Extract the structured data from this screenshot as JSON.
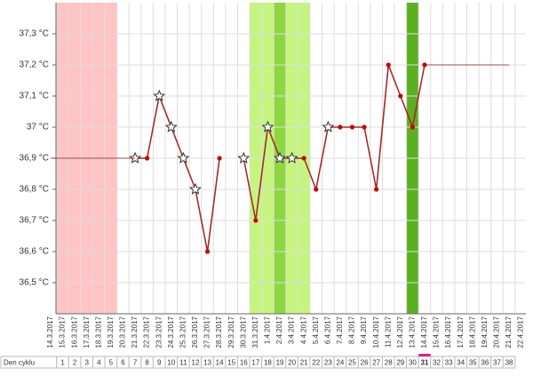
{
  "chart_data": {
    "type": "line",
    "categories": [
      "14.3.2017",
      "15.3.2017",
      "16.3.2017",
      "17.3.2017",
      "18.3.2017",
      "19.3.2017",
      "20.3.2017",
      "21.3.2017",
      "22.3.2017",
      "23.3.2017",
      "24.3.2017",
      "25.3.2017",
      "26.3.2017",
      "27.3.2017",
      "28.3.2017",
      "29.3.2017",
      "30.3.2017",
      "31.3.2017",
      "1.4.2017",
      "2.4.2017",
      "3.4.2017",
      "4.4.2017",
      "5.4.2017",
      "6.4.2017",
      "7.4.2017",
      "8.4.2017",
      "9.4.2017",
      "10.4.2017",
      "11.4.2017",
      "12.4.2017",
      "13.4.2017",
      "14.4.2017",
      "15.4.2017",
      "16.4.2017",
      "17.4.2017",
      "18.4.2017",
      "19.4.2017",
      "20.4.2017",
      "21.4.2017",
      "22.4.2017"
    ],
    "series": [
      {
        "color": "#a52a2a",
        "marker_color": "#cc0000",
        "values": [
          null,
          null,
          null,
          null,
          null,
          null,
          null,
          36.9,
          36.9,
          37.1,
          37.0,
          36.9,
          36.8,
          36.6,
          36.9,
          null,
          36.9,
          36.7,
          37.0,
          36.9,
          36.9,
          36.9,
          36.8,
          37.0,
          37.0,
          37.0,
          37.0,
          36.8,
          37.2,
          37.1,
          37.0,
          37.2,
          null,
          null,
          null,
          null,
          null,
          null,
          null,
          null
        ],
        "markers": [
          null,
          null,
          null,
          null,
          null,
          null,
          null,
          "star",
          "dot",
          "star",
          "star",
          "star",
          "star",
          "dot",
          "dot",
          null,
          "star",
          "dot",
          "star",
          "star",
          "star",
          "dot",
          "dot",
          "star",
          "dot",
          "dot",
          "dot",
          "dot",
          "dot",
          "dot",
          "dot",
          "dot",
          null,
          null,
          null,
          null,
          null,
          null,
          null,
          null
        ]
      },
      {
        "color": "#8b1a1a",
        "values": [
          36.9,
          36.9,
          36.9,
          36.9,
          36.9,
          36.9,
          36.9,
          36.9,
          null,
          null,
          null,
          null,
          null,
          null,
          null,
          null,
          null,
          null,
          null,
          null,
          null,
          null,
          null,
          null,
          null,
          null,
          null,
          null,
          null,
          null,
          null,
          37.2,
          37.2,
          37.2,
          37.2,
          37.2,
          37.2,
          37.2,
          37.2,
          null
        ]
      }
    ],
    "ylim": [
      36.4,
      37.4
    ],
    "yticks": [
      {
        "value": 36.5,
        "label": "36,5 °C"
      },
      {
        "value": 36.6,
        "label": "36,6 °C"
      },
      {
        "value": 36.7,
        "label": "36,7 °C"
      },
      {
        "value": 36.8,
        "label": "36,8 °C"
      },
      {
        "value": 36.9,
        "label": "36,9 °C"
      },
      {
        "value": 37,
        "label": "37 °C"
      },
      {
        "value": 37.1,
        "label": "37,1 °C"
      },
      {
        "value": 37.2,
        "label": "37,2 °C"
      },
      {
        "value": 37.3,
        "label": "37,3 °C"
      }
    ],
    "grid": true,
    "bands": [
      {
        "start": "15.3.2017",
        "end": "19.3.2017",
        "color": "#ffc4c4"
      },
      {
        "start": "31.3.2017",
        "end": "4.4.2017",
        "color": "#c6f57f"
      },
      {
        "start": "2.4.2017",
        "end": "2.4.2017",
        "color": "#8fd63f"
      },
      {
        "start": "13.4.2017",
        "end": "13.4.2017",
        "color": "#5ab01e"
      }
    ],
    "cycle_label": "Den cyklu",
    "cycle_days": [
      1,
      2,
      3,
      4,
      5,
      6,
      7,
      8,
      9,
      10,
      11,
      12,
      13,
      14,
      15,
      16,
      17,
      18,
      19,
      20,
      21,
      22,
      23,
      24,
      25,
      26,
      27,
      28,
      29,
      30,
      31,
      32,
      33,
      34,
      35,
      36,
      37,
      38
    ],
    "current_day": 31,
    "current_day_color": "#e0208a"
  }
}
